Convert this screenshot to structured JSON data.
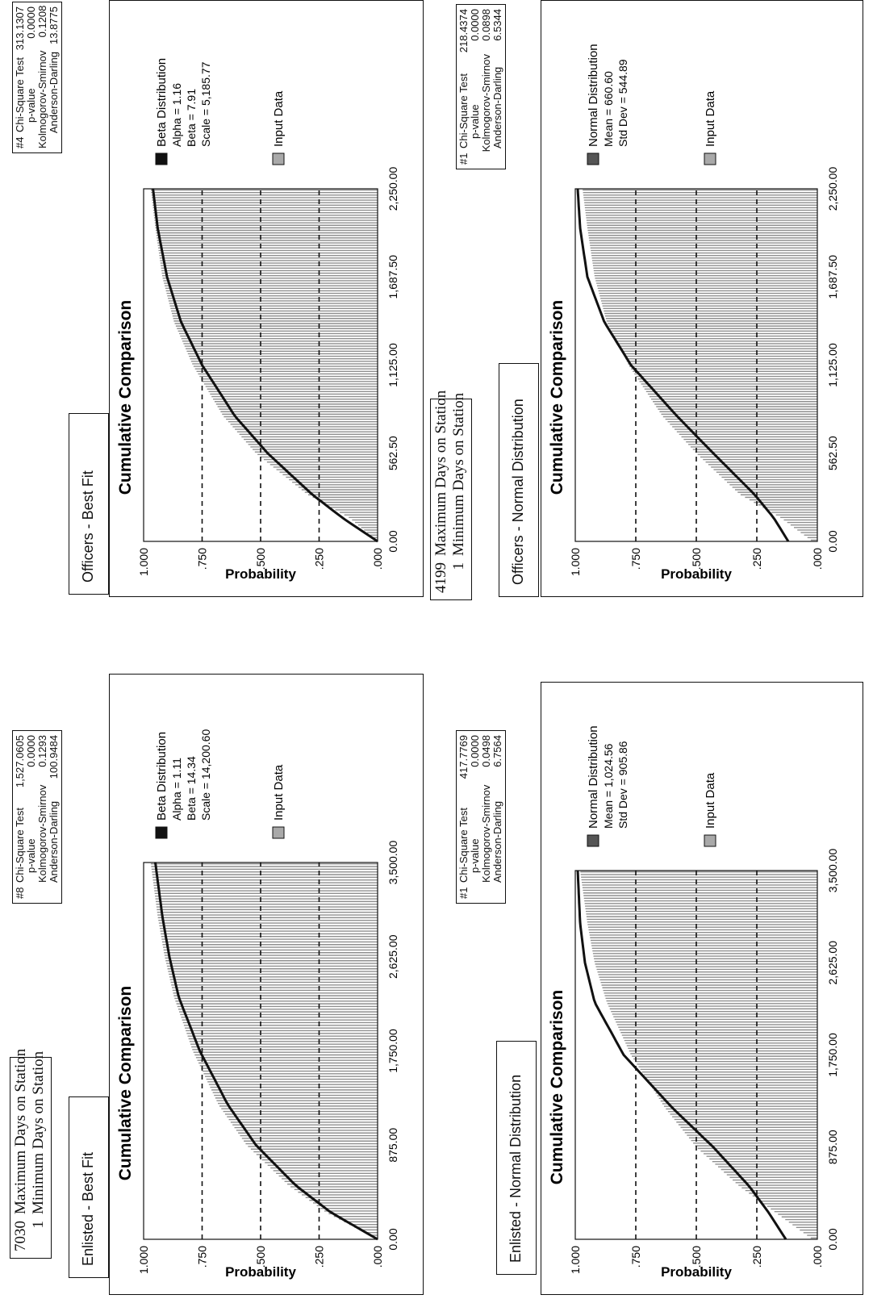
{
  "panels": [
    {
      "id": "enlisted-best-fit",
      "minmax": [
        {
          "value": "7030",
          "label": "Maximum Days on Station"
        },
        {
          "value": "1",
          "label": "Minimum Days on Station"
        }
      ],
      "subtitle": "Enlisted - Best Fit",
      "stats": {
        "rank": "#1",
        "rows": [
          {
            "label": "Chi-Square Test",
            "value": "417.7769"
          },
          {
            "label": "p-value",
            "value": "0.0000"
          },
          {
            "label": "Kolmogorov-Smirnov",
            "value": "0.0498"
          },
          {
            "label": "Anderson-Darling",
            "value": "6.7564"
          }
        ]
      },
      "legend": {
        "fit_title": "Beta Distribution",
        "fit_params": [
          "Alpha = 1.11",
          "Beta = 14.34",
          "Scale = 14,200.60"
        ],
        "fit_color": "#111111",
        "data_label": "Input Data",
        "data_color": "#a9a9a9"
      }
    },
    {
      "id": "officers-best-fit",
      "minmax": [
        {
          "value": "4199",
          "label": "Maximum Days on Station"
        },
        {
          "value": "1",
          "label": "Minimum Days on Station"
        }
      ],
      "subtitle": "Officers - Best Fit",
      "stats": {
        "rank": "#1",
        "rows": [
          {
            "label": "Chi-Square Test",
            "value": "218.4374"
          },
          {
            "label": "p-value",
            "value": "0.0000"
          },
          {
            "label": "Kolmogorov-Smirnov",
            "value": "0.0898"
          },
          {
            "label": "Anderson-Darling",
            "value": "6.5344"
          }
        ]
      },
      "legend": {
        "fit_title": "Beta Distribution",
        "fit_params": [
          "Alpha = 1.16",
          "Beta = 7.91",
          "Scale = 5,185.77"
        ],
        "fit_color": "#111111",
        "data_label": "Input Data",
        "data_color": "#a9a9a9"
      }
    },
    {
      "id": "enlisted-normal",
      "minmax": [],
      "subtitle": "Enlisted - Normal Distribution",
      "stats": {
        "rank": "#8",
        "rows": [
          {
            "label": "Chi-Square Test",
            "value": "1,527.0605"
          },
          {
            "label": "p-value",
            "value": "0.0000"
          },
          {
            "label": "Kolmogorov-Smirnov",
            "value": "0.1293"
          },
          {
            "label": "Anderson-Darling",
            "value": "100.9484"
          }
        ]
      },
      "legend": {
        "fit_title": "Normal Distribution",
        "fit_params": [
          "Mean = 1,024.56",
          "Std Dev = 905.86"
        ],
        "fit_color": "#555555",
        "data_label": "Input Data",
        "data_color": "#a9a9a9"
      }
    },
    {
      "id": "officers-normal",
      "minmax": [],
      "subtitle": "Officers - Normal Distribution",
      "stats": {
        "rank": "#4",
        "rows": [
          {
            "label": "Chi-Square Test",
            "value": "313.1307"
          },
          {
            "label": "p-value",
            "value": "0.0000"
          },
          {
            "label": "Kolmogorov-Smirnov",
            "value": "0.1208"
          },
          {
            "label": "Anderson-Darling",
            "value": "13.8775"
          }
        ]
      },
      "legend": {
        "fit_title": "Normal Distribution",
        "fit_params": [
          "Mean = 660.60",
          "Std Dev = 544.89"
        ],
        "fit_color": "#555555",
        "data_label": "Input Data",
        "data_color": "#a9a9a9"
      }
    }
  ],
  "chart_data": [
    {
      "type": "area",
      "title": "Cumulative Comparison",
      "xlabel": "",
      "ylabel": "Probability",
      "xlim": [
        0,
        3500
      ],
      "ylim": [
        0,
        1
      ],
      "x_ticks": [
        "0.00",
        "875.00",
        "1,750.00",
        "2,625.00",
        "3,500.00"
      ],
      "y_ticks": [
        "1.000",
        ".750",
        ".500",
        ".250",
        ".000"
      ],
      "gridlines_y": [
        0.25,
        0.5,
        0.75
      ],
      "series": [
        {
          "name": "Beta Distribution",
          "kind": "line",
          "x": [
            0,
            250,
            500,
            875,
            1250,
            1750,
            2250,
            2625,
            3000,
            3500
          ],
          "y": [
            0,
            0.2,
            0.35,
            0.52,
            0.64,
            0.76,
            0.85,
            0.89,
            0.92,
            0.95
          ]
        },
        {
          "name": "Input Data",
          "kind": "area",
          "x": [
            0,
            250,
            500,
            875,
            1250,
            1750,
            2250,
            2625,
            3000,
            3500
          ],
          "y": [
            0,
            0.22,
            0.38,
            0.56,
            0.68,
            0.79,
            0.87,
            0.91,
            0.94,
            0.97
          ]
        }
      ]
    },
    {
      "type": "area",
      "title": "Cumulative Comparison",
      "xlabel": "",
      "ylabel": "Probability",
      "xlim": [
        0,
        2250
      ],
      "ylim": [
        0,
        1
      ],
      "x_ticks": [
        "0.00",
        "562.50",
        "1,125.00",
        "1,687.50",
        "2,250.00"
      ],
      "y_ticks": [
        "1.000",
        ".750",
        ".500",
        ".250",
        ".000"
      ],
      "gridlines_y": [
        0.25,
        0.5,
        0.75
      ],
      "series": [
        {
          "name": "Beta Distribution",
          "kind": "line",
          "x": [
            0,
            150,
            300,
            562.5,
            800,
            1125,
            1400,
            1687.5,
            2000,
            2250
          ],
          "y": [
            0,
            0.15,
            0.28,
            0.47,
            0.61,
            0.75,
            0.84,
            0.9,
            0.94,
            0.96
          ]
        },
        {
          "name": "Input Data",
          "kind": "area",
          "x": [
            0,
            150,
            300,
            562.5,
            800,
            1125,
            1400,
            1687.5,
            2000,
            2250
          ],
          "y": [
            0,
            0.12,
            0.3,
            0.52,
            0.66,
            0.79,
            0.87,
            0.92,
            0.95,
            0.97
          ]
        }
      ]
    },
    {
      "type": "area",
      "title": "Cumulative Comparison",
      "xlabel": "",
      "ylabel": "Probability",
      "xlim": [
        0,
        3500
      ],
      "ylim": [
        0,
        1
      ],
      "x_ticks": [
        "0.00",
        "875.00",
        "1,750.00",
        "2,625.00",
        "3,500.00"
      ],
      "y_ticks": [
        "1.000",
        ".750",
        ".500",
        ".250",
        ".000"
      ],
      "gridlines_y": [
        0.25,
        0.5,
        0.75
      ],
      "series": [
        {
          "name": "Normal Distribution",
          "kind": "line",
          "x": [
            0,
            250,
            500,
            875,
            1250,
            1750,
            2250,
            2625,
            3000,
            3500
          ],
          "y": [
            0.13,
            0.2,
            0.28,
            0.43,
            0.6,
            0.8,
            0.92,
            0.96,
            0.98,
            0.99
          ]
        },
        {
          "name": "Input Data",
          "kind": "area",
          "x": [
            0,
            250,
            500,
            875,
            1250,
            1750,
            2250,
            2625,
            3000,
            3500
          ],
          "y": [
            0.02,
            0.17,
            0.32,
            0.5,
            0.63,
            0.77,
            0.87,
            0.92,
            0.95,
            0.98
          ]
        }
      ]
    },
    {
      "type": "area",
      "title": "Cumulative Comparison",
      "xlabel": "",
      "ylabel": "Probability",
      "xlim": [
        0,
        2250
      ],
      "ylim": [
        0,
        1
      ],
      "x_ticks": [
        "0.00",
        "562.50",
        "1,125.00",
        "1,687.50",
        "2,250.00"
      ],
      "y_ticks": [
        "1.000",
        ".750",
        ".500",
        ".250",
        ".000"
      ],
      "gridlines_y": [
        0.25,
        0.5,
        0.75
      ],
      "series": [
        {
          "name": "Normal Distribution",
          "kind": "line",
          "x": [
            0,
            150,
            300,
            562.5,
            800,
            1125,
            1400,
            1687.5,
            2000,
            2250
          ],
          "y": [
            0.12,
            0.18,
            0.26,
            0.43,
            0.58,
            0.77,
            0.88,
            0.95,
            0.98,
            0.99
          ]
        },
        {
          "name": "Input Data",
          "kind": "area",
          "x": [
            0,
            150,
            300,
            562.5,
            800,
            1125,
            1400,
            1687.5,
            2000,
            2250
          ],
          "y": [
            0.02,
            0.15,
            0.32,
            0.5,
            0.64,
            0.78,
            0.87,
            0.92,
            0.95,
            0.97
          ]
        }
      ]
    }
  ]
}
